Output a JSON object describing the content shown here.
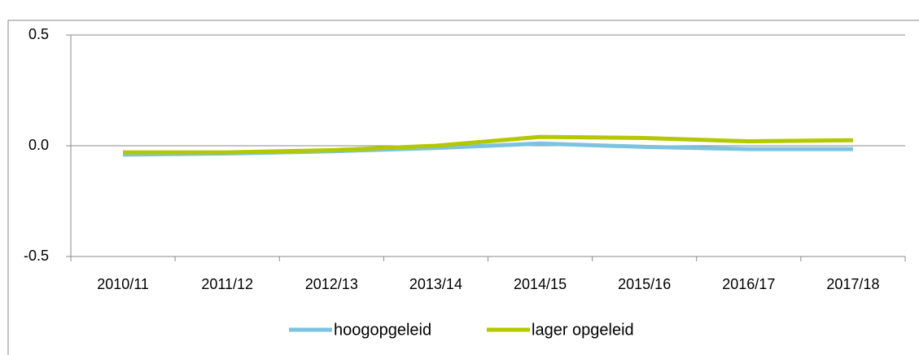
{
  "chart_data": {
    "type": "line",
    "categories": [
      "2010/11",
      "2011/12",
      "2012/13",
      "2013/14",
      "2014/15",
      "2015/16",
      "2016/17",
      "2017/18"
    ],
    "series": [
      {
        "name": "hoogopgeleid",
        "color": "#7cc3e0",
        "values": [
          -0.04,
          -0.035,
          -0.025,
          -0.01,
          0.01,
          -0.005,
          -0.015,
          -0.015
        ]
      },
      {
        "name": "lager opgeleid",
        "color": "#b4c800",
        "values": [
          -0.03,
          -0.03,
          -0.02,
          0,
          0.04,
          0.035,
          0.02,
          0.025
        ]
      }
    ],
    "ylim": [
      -0.5,
      0.5
    ],
    "yticks": [
      {
        "value": -0.5,
        "label": "-0.5"
      },
      {
        "value": 0,
        "label": "0.0"
      },
      {
        "value": 0.5,
        "label": "0.5"
      }
    ],
    "grid": true,
    "legend": "bottom"
  }
}
